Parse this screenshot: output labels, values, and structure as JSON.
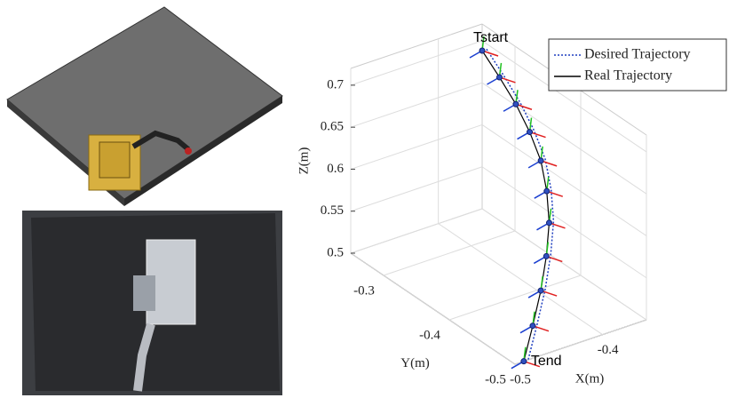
{
  "chart_data": {
    "type": "line3d",
    "xlabel": "X(m)",
    "ylabel": "Y(m)",
    "zlabel": "Z(m)",
    "annotations": [
      "Tstart",
      "Tend"
    ],
    "xlim": [
      -0.5,
      -0.35
    ],
    "xticks": [
      -0.5,
      -0.4
    ],
    "ylim": [
      -0.5,
      -0.25
    ],
    "yticks": [
      -0.5,
      -0.4,
      -0.3
    ],
    "zlim": [
      0.5,
      0.72
    ],
    "zticks": [
      0.5,
      0.55,
      0.6,
      0.65,
      0.7
    ],
    "grid": true,
    "legend": "upper right",
    "series": [
      {
        "name": "Desired Trajectory",
        "color": "#1f3fbf",
        "style": "dotted",
        "x": [
          -0.375,
          -0.371,
          -0.368,
          -0.368,
          -0.371,
          -0.38,
          -0.393,
          -0.412,
          -0.434,
          -0.459,
          -0.485
        ],
        "y": [
          -0.29,
          -0.311,
          -0.332,
          -0.353,
          -0.374,
          -0.395,
          -0.416,
          -0.437,
          -0.458,
          -0.479,
          -0.5
        ],
        "z": [
          0.72,
          0.698,
          0.676,
          0.654,
          0.632,
          0.61,
          0.588,
          0.566,
          0.544,
          0.522,
          0.5
        ]
      },
      {
        "name": "Real Trajectory",
        "color": "#000000",
        "style": "solid",
        "x": [
          -0.38,
          -0.376,
          -0.373,
          -0.373,
          -0.376,
          -0.385,
          -0.398,
          -0.417,
          -0.439,
          -0.464,
          -0.49
        ],
        "y": [
          -0.29,
          -0.311,
          -0.332,
          -0.353,
          -0.374,
          -0.395,
          -0.416,
          -0.437,
          -0.458,
          -0.479,
          -0.5
        ],
        "z": [
          0.72,
          0.698,
          0.676,
          0.654,
          0.632,
          0.61,
          0.588,
          0.566,
          0.544,
          0.522,
          0.5
        ]
      }
    ]
  }
}
